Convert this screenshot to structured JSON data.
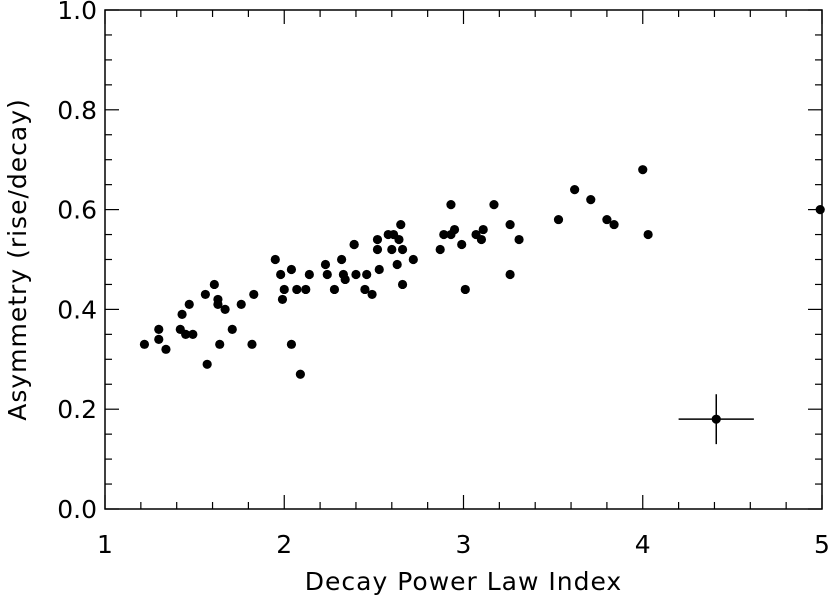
{
  "chart_data": {
    "type": "scatter",
    "title": "",
    "xlabel": "Decay Power Law Index",
    "ylabel": "Asymmetry (rise/decay)",
    "xlim": [
      1,
      5
    ],
    "ylim": [
      0,
      1
    ],
    "x_ticks": [
      "1",
      "2",
      "3",
      "4",
      "5"
    ],
    "y_ticks": [
      "0.0",
      "0.2",
      "0.4",
      "0.6",
      "0.8",
      "1.0"
    ],
    "grid": false,
    "legend": "none",
    "marker_color": "#000000",
    "points": [
      {
        "x": 1.22,
        "y": 0.33
      },
      {
        "x": 1.3,
        "y": 0.34
      },
      {
        "x": 1.3,
        "y": 0.36
      },
      {
        "x": 1.34,
        "y": 0.32
      },
      {
        "x": 1.42,
        "y": 0.36
      },
      {
        "x": 1.43,
        "y": 0.39
      },
      {
        "x": 1.45,
        "y": 0.35
      },
      {
        "x": 1.47,
        "y": 0.41
      },
      {
        "x": 1.49,
        "y": 0.35
      },
      {
        "x": 1.56,
        "y": 0.43
      },
      {
        "x": 1.57,
        "y": 0.29
      },
      {
        "x": 1.61,
        "y": 0.45
      },
      {
        "x": 1.63,
        "y": 0.42
      },
      {
        "x": 1.63,
        "y": 0.41
      },
      {
        "x": 1.64,
        "y": 0.33
      },
      {
        "x": 1.67,
        "y": 0.4
      },
      {
        "x": 1.71,
        "y": 0.36
      },
      {
        "x": 1.76,
        "y": 0.41
      },
      {
        "x": 1.82,
        "y": 0.33
      },
      {
        "x": 1.83,
        "y": 0.43
      },
      {
        "x": 1.95,
        "y": 0.5
      },
      {
        "x": 1.98,
        "y": 0.47
      },
      {
        "x": 1.99,
        "y": 0.42
      },
      {
        "x": 2.0,
        "y": 0.44
      },
      {
        "x": 2.04,
        "y": 0.33
      },
      {
        "x": 2.04,
        "y": 0.48
      },
      {
        "x": 2.07,
        "y": 0.44
      },
      {
        "x": 2.09,
        "y": 0.27
      },
      {
        "x": 2.12,
        "y": 0.44
      },
      {
        "x": 2.14,
        "y": 0.47
      },
      {
        "x": 2.23,
        "y": 0.49
      },
      {
        "x": 2.24,
        "y": 0.47
      },
      {
        "x": 2.28,
        "y": 0.44
      },
      {
        "x": 2.32,
        "y": 0.5
      },
      {
        "x": 2.33,
        "y": 0.47
      },
      {
        "x": 2.34,
        "y": 0.46
      },
      {
        "x": 2.39,
        "y": 0.53
      },
      {
        "x": 2.39,
        "y": 0.53
      },
      {
        "x": 2.4,
        "y": 0.47
      },
      {
        "x": 2.45,
        "y": 0.44
      },
      {
        "x": 2.46,
        "y": 0.47
      },
      {
        "x": 2.49,
        "y": 0.43
      },
      {
        "x": 2.52,
        "y": 0.54
      },
      {
        "x": 2.52,
        "y": 0.52
      },
      {
        "x": 2.53,
        "y": 0.48
      },
      {
        "x": 2.58,
        "y": 0.55
      },
      {
        "x": 2.6,
        "y": 0.52
      },
      {
        "x": 2.61,
        "y": 0.55
      },
      {
        "x": 2.63,
        "y": 0.49
      },
      {
        "x": 2.64,
        "y": 0.54
      },
      {
        "x": 2.65,
        "y": 0.57
      },
      {
        "x": 2.66,
        "y": 0.52
      },
      {
        "x": 2.66,
        "y": 0.45
      },
      {
        "x": 2.72,
        "y": 0.5
      },
      {
        "x": 2.87,
        "y": 0.52
      },
      {
        "x": 2.89,
        "y": 0.55
      },
      {
        "x": 2.93,
        "y": 0.55
      },
      {
        "x": 2.93,
        "y": 0.61
      },
      {
        "x": 2.95,
        "y": 0.56
      },
      {
        "x": 2.99,
        "y": 0.53
      },
      {
        "x": 3.01,
        "y": 0.44
      },
      {
        "x": 3.07,
        "y": 0.55
      },
      {
        "x": 3.1,
        "y": 0.54
      },
      {
        "x": 3.11,
        "y": 0.56
      },
      {
        "x": 3.17,
        "y": 0.61
      },
      {
        "x": 3.26,
        "y": 0.47
      },
      {
        "x": 3.26,
        "y": 0.57
      },
      {
        "x": 3.31,
        "y": 0.54
      },
      {
        "x": 3.53,
        "y": 0.58
      },
      {
        "x": 3.62,
        "y": 0.64
      },
      {
        "x": 3.71,
        "y": 0.62
      },
      {
        "x": 3.8,
        "y": 0.58
      },
      {
        "x": 3.84,
        "y": 0.57
      },
      {
        "x": 4.0,
        "y": 0.68
      },
      {
        "x": 4.03,
        "y": 0.55
      },
      {
        "x": 4.99,
        "y": 0.6
      }
    ],
    "error_bar_example": {
      "x": 4.41,
      "y": 0.18,
      "xerr": 0.21,
      "yerr": 0.05
    }
  }
}
